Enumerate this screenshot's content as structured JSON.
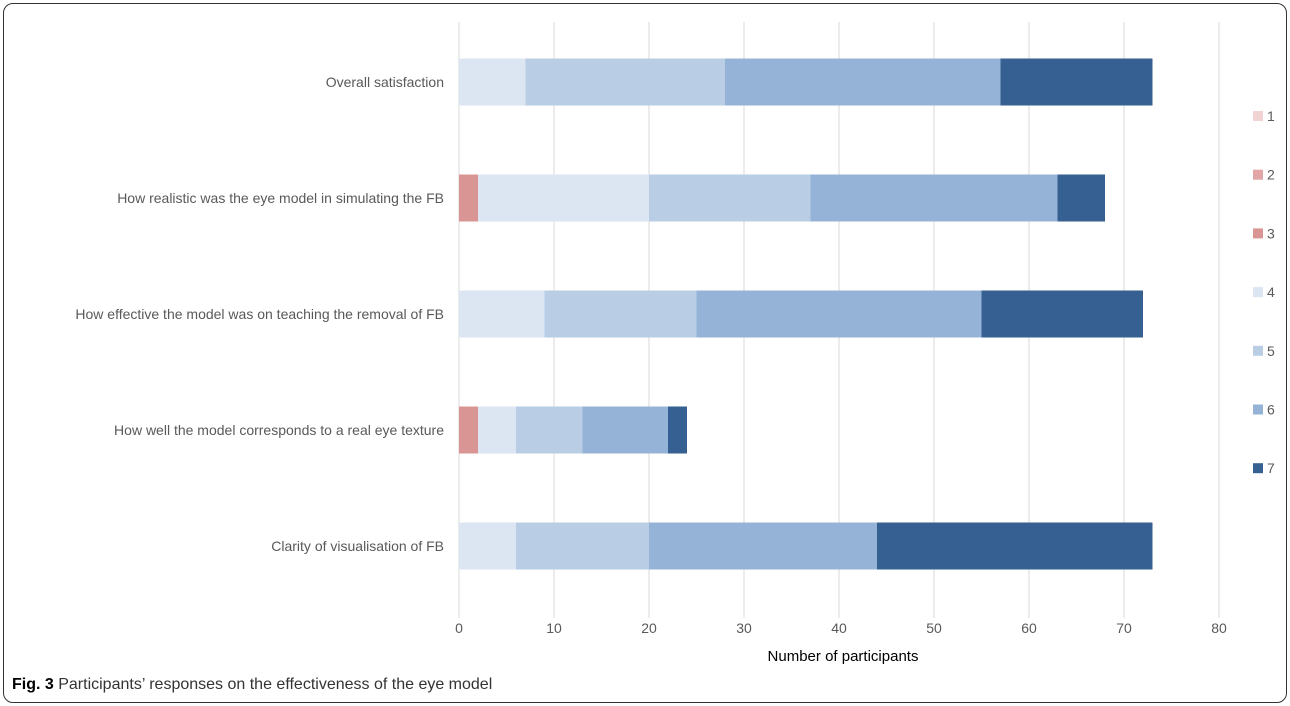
{
  "chart_data": {
    "type": "bar",
    "orientation": "horizontal",
    "stacked": true,
    "categories": [
      "Overall satisfaction",
      "How realistic was the eye model in simulating the FB",
      "How effective the model was on teaching the removal of FB",
      "How well the model corresponds to a real eye texture",
      "Clarity of visualisation of FB"
    ],
    "series": [
      {
        "name": "1",
        "color": "#f2d3d3",
        "values": [
          0,
          0,
          0,
          0,
          0
        ]
      },
      {
        "name": "2",
        "color": "#e2a6a6",
        "values": [
          0,
          0,
          0,
          0,
          0
        ]
      },
      {
        "name": "3",
        "color": "#d99594",
        "values": [
          0,
          2,
          0,
          2,
          0
        ]
      },
      {
        "name": "4",
        "color": "#dce6f2",
        "values": [
          7,
          18,
          9,
          4,
          6
        ]
      },
      {
        "name": "5",
        "color": "#b9cde5",
        "values": [
          21,
          17,
          16,
          7,
          14
        ]
      },
      {
        "name": "6",
        "color": "#95b3d7",
        "values": [
          29,
          26,
          30,
          9,
          24
        ]
      },
      {
        "name": "7",
        "color": "#366092",
        "values": [
          16,
          5,
          17,
          2,
          29
        ]
      }
    ],
    "xlim": [
      0,
      80
    ],
    "xticks": [
      0,
      10,
      20,
      30,
      40,
      50,
      60,
      70,
      80
    ],
    "xlabel": "Number of participants",
    "ylabel": "",
    "grid": "vertical",
    "legend": "right"
  },
  "caption": {
    "label": "Fig. 3",
    "text": " Participants’ responses on the effectiveness of the eye model"
  }
}
